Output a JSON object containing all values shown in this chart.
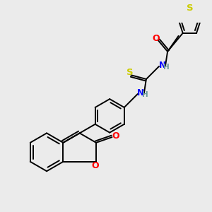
{
  "background_color": "#ebebeb",
  "atom_colors": {
    "N": "#0000ff",
    "O": "#ff0000",
    "S_thio": "#cccc00",
    "S_thph": "#cccc00",
    "H": "#6a9a9a"
  },
  "bond_color": "#000000",
  "bond_width": 1.4,
  "dbo": 0.055,
  "font_size": 8.5
}
